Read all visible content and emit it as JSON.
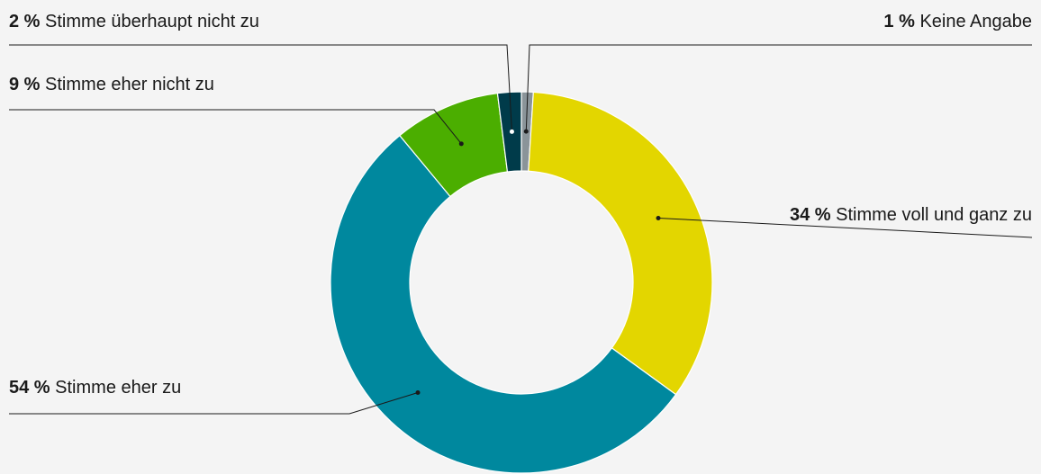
{
  "chart_data": {
    "type": "donut",
    "categories": [
      "Keine Angabe",
      "Stimme voll und ganz zu",
      "Stimme eher zu",
      "Stimme eher nicht zu",
      "Stimme überhaupt nicht zu"
    ],
    "values": [
      1,
      34,
      54,
      9,
      2
    ],
    "value_labels": [
      "1 %",
      "34 %",
      "54 %",
      "9 %",
      "2 %"
    ],
    "colors": [
      "#8a9499",
      "#e3d600",
      "#00889e",
      "#4bae00",
      "#003b4a"
    ]
  }
}
